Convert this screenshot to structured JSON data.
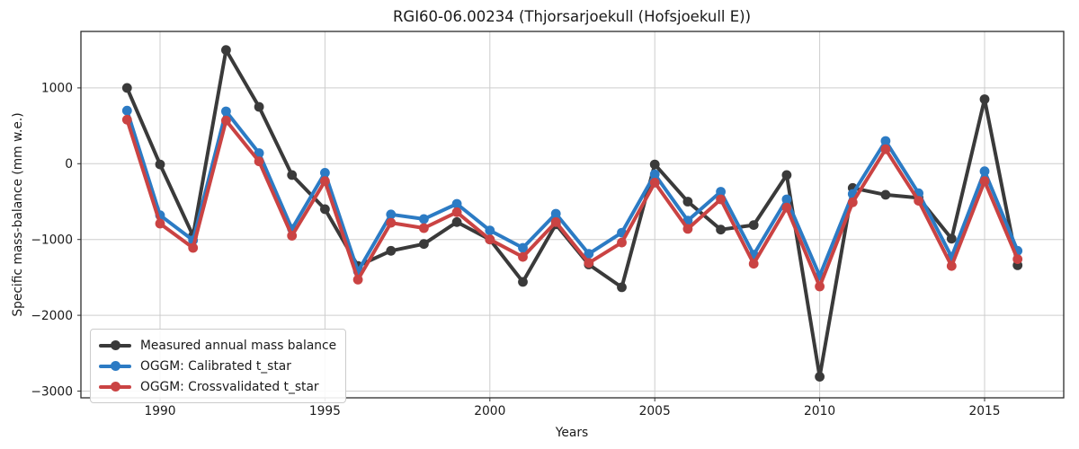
{
  "chart_data": {
    "type": "line",
    "title": "RGI60-06.00234 (Thjorsarjoekull (Hofsjoekull E))",
    "xlabel": "Years",
    "ylabel": "Specific mass-balance (mm w.e.)",
    "xlim": [
      1987.6,
      2017.4
    ],
    "ylim": [
      -3089,
      1745
    ],
    "x_ticks": [
      1990,
      1995,
      2000,
      2005,
      2010,
      2015
    ],
    "y_ticks": [
      1000,
      0,
      -1000,
      -2000,
      -3000
    ],
    "grid": true,
    "legend_position": "lower left",
    "background": "#ffffff",
    "grid_color": "#cdcdcd",
    "frame_color": "#2b2b2b",
    "x": [
      1989,
      1990,
      1991,
      1992,
      1993,
      1994,
      1995,
      1996,
      1997,
      1998,
      1999,
      2000,
      2001,
      2002,
      2003,
      2004,
      2005,
      2006,
      2007,
      2008,
      2009,
      2010,
      2011,
      2012,
      2013,
      2014,
      2015,
      2016
    ],
    "series": [
      {
        "name": "Measured annual mass balance",
        "color": "#3a3a3a",
        "values": [
          1000,
          -10,
          -950,
          1500,
          750,
          -150,
          -600,
          -1350,
          -1150,
          -1060,
          -770,
          -1000,
          -1560,
          -800,
          -1330,
          -1630,
          -10,
          -500,
          -870,
          -810,
          -150,
          -2810,
          -320,
          -410,
          -450,
          -990,
          850,
          -1340
        ]
      },
      {
        "name": "OGGM: Calibrated t_star",
        "color": "#2c7bc4",
        "values": [
          700,
          -680,
          -1010,
          690,
          140,
          -860,
          -120,
          -1420,
          -670,
          -730,
          -530,
          -880,
          -1110,
          -660,
          -1190,
          -910,
          -140,
          -750,
          -370,
          -1200,
          -470,
          -1480,
          -400,
          300,
          -390,
          -1230,
          -100,
          -1150
        ]
      },
      {
        "name": "OGGM: Crossvalidated t_star",
        "color": "#ca4343",
        "values": [
          580,
          -790,
          -1110,
          570,
          30,
          -950,
          -230,
          -1530,
          -780,
          -850,
          -640,
          -1000,
          -1230,
          -770,
          -1310,
          -1040,
          -250,
          -860,
          -470,
          -1320,
          -580,
          -1620,
          -510,
          190,
          -490,
          -1350,
          -230,
          -1260
        ]
      }
    ]
  }
}
